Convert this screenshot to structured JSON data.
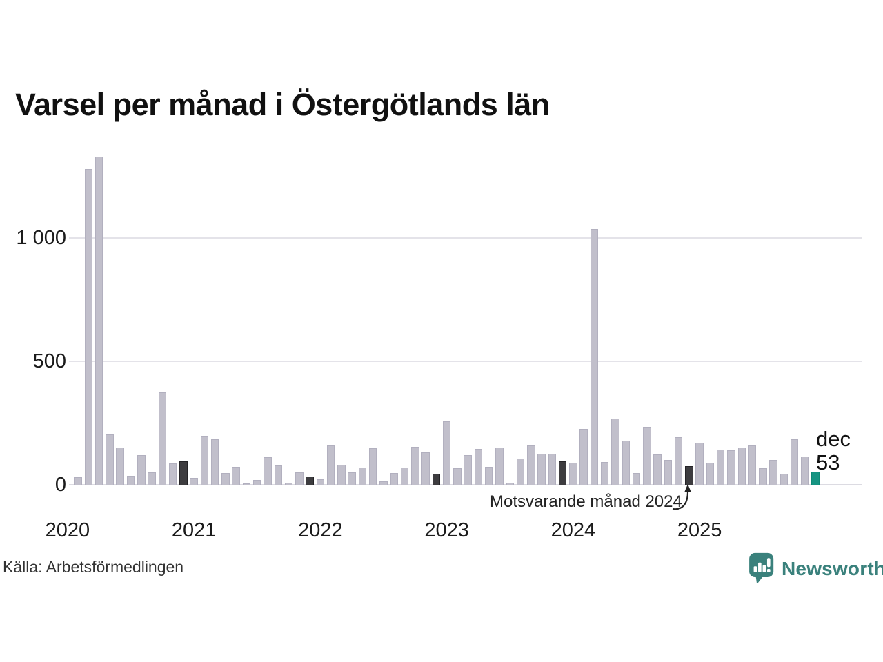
{
  "title": "Varsel per månad i Östergötlands län",
  "footer": {
    "source": "Källa: Arbetsförmedlingen",
    "brand": "Newsworthy"
  },
  "colors": {
    "bar": "#c1bfcb",
    "bar_border": "#b2b0bf",
    "dark": "#3d3c3f",
    "dark_border": "#242326",
    "teal": "#169482",
    "teal_border": "#0d8a76",
    "gridline": "#e4e3e9",
    "baseline": "#dcdbe2",
    "axis_text": "#1b1b1b",
    "brand_teal": "#3a817c"
  },
  "chart_data": {
    "type": "bar",
    "title": "Varsel per månad i Östergötlands län",
    "xlabel": "",
    "ylabel": "",
    "x_unit": "month",
    "x_range": [
      "2020-01",
      "2025-12"
    ],
    "ylim": [
      0,
      1340
    ],
    "grid": "horizontal",
    "legend_position": "none",
    "y_ticks": [
      {
        "value": 0,
        "label": "0"
      },
      {
        "value": 500,
        "label": "500"
      },
      {
        "value": 1000,
        "label": "1 000"
      }
    ],
    "year_labels": [
      "2020",
      "2021",
      "2022",
      "2023",
      "2024",
      "2025"
    ],
    "annotation": {
      "text": "Motsvarande månad 2024",
      "target_month": "2024-12"
    },
    "last_point": {
      "label": "dec",
      "value": 53,
      "month": "2025-12"
    },
    "highlight": {
      "dark_months": [
        "2020-12",
        "2021-12",
        "2022-12",
        "2023-12",
        "2024-12"
      ],
      "teal_month": "2025-12"
    },
    "points": [
      {
        "month": "2020-01",
        "value": 0
      },
      {
        "month": "2020-02",
        "value": 30
      },
      {
        "month": "2020-03",
        "value": 1280
      },
      {
        "month": "2020-04",
        "value": 1330
      },
      {
        "month": "2020-05",
        "value": 205
      },
      {
        "month": "2020-06",
        "value": 150
      },
      {
        "month": "2020-07",
        "value": 35
      },
      {
        "month": "2020-08",
        "value": 120
      },
      {
        "month": "2020-09",
        "value": 50
      },
      {
        "month": "2020-10",
        "value": 375
      },
      {
        "month": "2020-11",
        "value": 87
      },
      {
        "month": "2020-12",
        "value": 95
      },
      {
        "month": "2021-01",
        "value": 27
      },
      {
        "month": "2021-02",
        "value": 198
      },
      {
        "month": "2021-03",
        "value": 185
      },
      {
        "month": "2021-04",
        "value": 48
      },
      {
        "month": "2021-05",
        "value": 72
      },
      {
        "month": "2021-06",
        "value": 6
      },
      {
        "month": "2021-07",
        "value": 20
      },
      {
        "month": "2021-08",
        "value": 113
      },
      {
        "month": "2021-09",
        "value": 78
      },
      {
        "month": "2021-10",
        "value": 9
      },
      {
        "month": "2021-11",
        "value": 50
      },
      {
        "month": "2021-12",
        "value": 33
      },
      {
        "month": "2022-01",
        "value": 22
      },
      {
        "month": "2022-02",
        "value": 158
      },
      {
        "month": "2022-03",
        "value": 80
      },
      {
        "month": "2022-04",
        "value": 49
      },
      {
        "month": "2022-05",
        "value": 71
      },
      {
        "month": "2022-06",
        "value": 147
      },
      {
        "month": "2022-07",
        "value": 13
      },
      {
        "month": "2022-08",
        "value": 47
      },
      {
        "month": "2022-09",
        "value": 69
      },
      {
        "month": "2022-10",
        "value": 155
      },
      {
        "month": "2022-11",
        "value": 130
      },
      {
        "month": "2022-12",
        "value": 46
      },
      {
        "month": "2023-01",
        "value": 258
      },
      {
        "month": "2023-02",
        "value": 66
      },
      {
        "month": "2023-03",
        "value": 120
      },
      {
        "month": "2023-04",
        "value": 144
      },
      {
        "month": "2023-05",
        "value": 74
      },
      {
        "month": "2023-06",
        "value": 150
      },
      {
        "month": "2023-07",
        "value": 7
      },
      {
        "month": "2023-08",
        "value": 107
      },
      {
        "month": "2023-09",
        "value": 159
      },
      {
        "month": "2023-10",
        "value": 127
      },
      {
        "month": "2023-11",
        "value": 127
      },
      {
        "month": "2023-12",
        "value": 96
      },
      {
        "month": "2024-01",
        "value": 90
      },
      {
        "month": "2024-02",
        "value": 226
      },
      {
        "month": "2024-03",
        "value": 1035
      },
      {
        "month": "2024-04",
        "value": 93
      },
      {
        "month": "2024-05",
        "value": 267
      },
      {
        "month": "2024-06",
        "value": 179
      },
      {
        "month": "2024-07",
        "value": 48
      },
      {
        "month": "2024-08",
        "value": 234
      },
      {
        "month": "2024-09",
        "value": 123
      },
      {
        "month": "2024-10",
        "value": 100
      },
      {
        "month": "2024-11",
        "value": 192
      },
      {
        "month": "2024-12",
        "value": 76
      },
      {
        "month": "2025-01",
        "value": 169
      },
      {
        "month": "2025-02",
        "value": 88
      },
      {
        "month": "2025-03",
        "value": 142
      },
      {
        "month": "2025-04",
        "value": 140
      },
      {
        "month": "2025-05",
        "value": 152
      },
      {
        "month": "2025-06",
        "value": 160
      },
      {
        "month": "2025-07",
        "value": 68
      },
      {
        "month": "2025-08",
        "value": 100
      },
      {
        "month": "2025-09",
        "value": 46
      },
      {
        "month": "2025-10",
        "value": 184
      },
      {
        "month": "2025-11",
        "value": 115
      },
      {
        "month": "2025-12",
        "value": 53
      }
    ]
  }
}
